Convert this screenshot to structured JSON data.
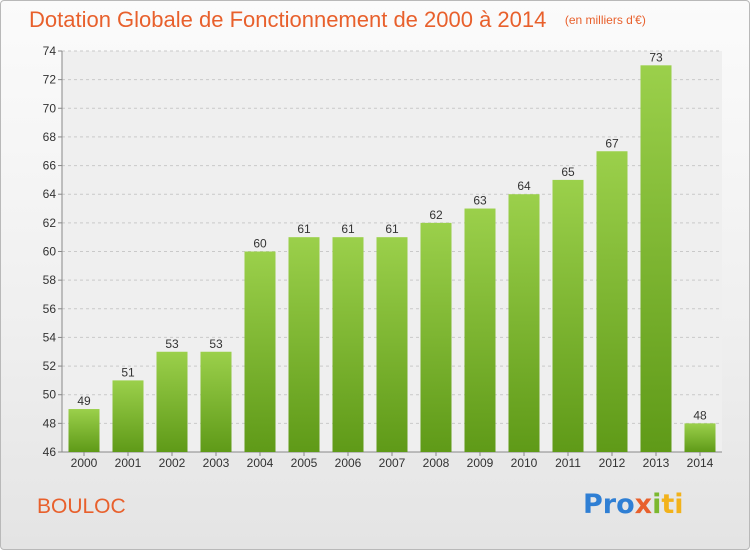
{
  "header": {
    "title": "Dotation Globale de Fonctionnement de 2000 à 2014",
    "unit": "(en milliers d'€)"
  },
  "commune": "BOULOC",
  "logo": {
    "p1": "Pro",
    "p2": "x",
    "p3": "i",
    "p4": "ti"
  },
  "chart_data": {
    "type": "bar",
    "title": "Dotation Globale de Fonctionnement de 2000 à 2014",
    "subtitle": "(en milliers d'€)",
    "xlabel": "",
    "ylabel": "",
    "categories": [
      "2000",
      "2001",
      "2002",
      "2003",
      "2004",
      "2005",
      "2006",
      "2007",
      "2008",
      "2009",
      "2010",
      "2011",
      "2012",
      "2013",
      "2014"
    ],
    "values": [
      49,
      51,
      53,
      53,
      60,
      61,
      61,
      61,
      62,
      63,
      64,
      65,
      67,
      73,
      48
    ],
    "ylim": [
      46,
      74
    ],
    "yticks": [
      46,
      48,
      50,
      52,
      54,
      56,
      58,
      60,
      62,
      64,
      66,
      68,
      70,
      72,
      74
    ],
    "grid": true,
    "bar_color": "#7cb82f",
    "title_color": "#e8602c"
  }
}
